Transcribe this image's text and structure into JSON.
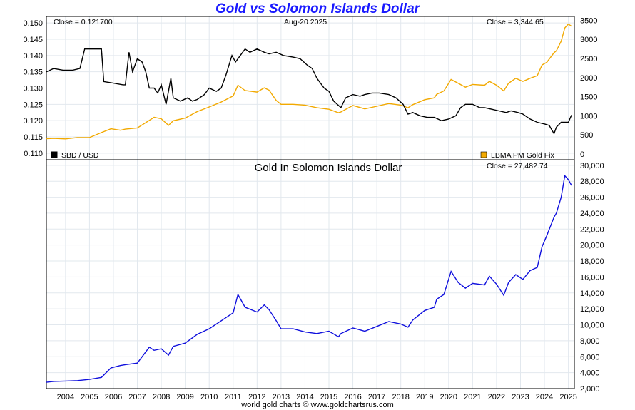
{
  "page": {
    "title": "Gold vs Solomon Islands Dollar",
    "footer": "world gold charts © www.goldchartsrus.com"
  },
  "colors": {
    "sbd_line": "#000000",
    "gold_line": "#f2a900",
    "gold_sbd_line": "#1010dd",
    "grid": "#e2e8ee",
    "title": "#1a1aff"
  },
  "chart_data": [
    {
      "type": "line",
      "close_left": "Close = 0.121700",
      "date_label": "Aug-20  2025",
      "close_right": "Close = 3,344.65",
      "x_tick_labels": [
        "2004",
        "2005",
        "2006",
        "2007",
        "2008",
        "2009",
        "2010",
        "2011",
        "2012",
        "2013",
        "2014",
        "2015",
        "2016",
        "2017",
        "2018",
        "2019",
        "2020",
        "2021",
        "2022",
        "2023",
        "2024",
        "2025"
      ],
      "y_left_ticks": [
        "0.110",
        "0.115",
        "0.120",
        "0.125",
        "0.130",
        "0.135",
        "0.140",
        "0.145",
        "0.150"
      ],
      "y_left_lim": [
        0.108,
        0.152
      ],
      "y_right_ticks": [
        "0",
        "500",
        "1000",
        "1500",
        "2000",
        "2500",
        "3000",
        "3500"
      ],
      "y_right_lim": [
        -150,
        3600
      ],
      "legend_placement": "bottom",
      "series": [
        {
          "name": "SBD / USD",
          "axis": "left",
          "x": [
            2003.7,
            2004.0,
            2004.4,
            2004.8,
            2005.1,
            2005.15,
            2005.3,
            2005.6,
            2006.0,
            2006.1,
            2006.5,
            2006.9,
            2007.0,
            2007.15,
            2007.3,
            2007.5,
            2007.7,
            2007.85,
            2008.0,
            2008.2,
            2008.35,
            2008.5,
            2008.7,
            2008.9,
            2009.0,
            2009.3,
            2009.6,
            2009.8,
            2010.0,
            2010.3,
            2010.5,
            2010.8,
            2011.0,
            2011.2,
            2011.45,
            2011.6,
            2011.8,
            2012.0,
            2012.2,
            2012.5,
            2012.8,
            2013.0,
            2013.3,
            2013.6,
            2014.0,
            2014.3,
            2014.6,
            2014.8,
            2015.0,
            2015.3,
            2015.5,
            2015.7,
            2016.0,
            2016.2,
            2016.5,
            2016.8,
            2017.0,
            2017.3,
            2017.6,
            2018.0,
            2018.3,
            2018.6,
            2018.8,
            2019.0,
            2019.3,
            2019.6,
            2019.9,
            2020.2,
            2020.5,
            2020.8,
            2021.0,
            2021.2,
            2021.5,
            2021.8,
            2022.0,
            2022.3,
            2022.6,
            2022.9,
            2023.1,
            2023.4,
            2023.6,
            2023.9,
            2024.2,
            2024.5,
            2024.7,
            2024.9,
            2025.0,
            2025.2,
            2025.35,
            2025.5,
            2025.63
          ],
          "values": [
            0.135,
            0.136,
            0.1355,
            0.1355,
            0.136,
            0.1375,
            0.142,
            0.142,
            0.142,
            0.132,
            0.1315,
            0.131,
            0.131,
            0.141,
            0.135,
            0.139,
            0.138,
            0.135,
            0.13,
            0.13,
            0.1285,
            0.131,
            0.125,
            0.133,
            0.127,
            0.126,
            0.127,
            0.126,
            0.1265,
            0.128,
            0.13,
            0.129,
            0.13,
            0.134,
            0.14,
            0.138,
            0.14,
            0.142,
            0.141,
            0.142,
            0.141,
            0.1405,
            0.141,
            0.14,
            0.1395,
            0.139,
            0.137,
            0.136,
            0.133,
            0.13,
            0.129,
            0.126,
            0.124,
            0.127,
            0.128,
            0.1275,
            0.128,
            0.1285,
            0.1285,
            0.128,
            0.127,
            0.125,
            0.122,
            0.1225,
            0.1215,
            0.121,
            0.121,
            0.12,
            0.1205,
            0.1215,
            0.124,
            0.125,
            0.125,
            0.124,
            0.124,
            0.1235,
            0.123,
            0.1225,
            0.123,
            0.1225,
            0.122,
            0.1205,
            0.1195,
            0.119,
            0.1185,
            0.116,
            0.118,
            0.1195,
            0.1195,
            0.1195,
            0.1217
          ]
        },
        {
          "name": "LBMA PM Gold Fix",
          "axis": "right",
          "x": [
            2003.7,
            2004.0,
            2004.5,
            2005.0,
            2005.5,
            2006.0,
            2006.4,
            2006.8,
            2007.0,
            2007.5,
            2008.0,
            2008.2,
            2008.5,
            2008.8,
            2009.0,
            2009.5,
            2010.0,
            2010.5,
            2011.0,
            2011.5,
            2011.7,
            2012.0,
            2012.5,
            2012.8,
            2013.0,
            2013.3,
            2013.5,
            2014.0,
            2014.5,
            2015.0,
            2015.5,
            2015.9,
            2016.0,
            2016.5,
            2017.0,
            2017.5,
            2018.0,
            2018.5,
            2018.8,
            2019.0,
            2019.5,
            2019.9,
            2020.0,
            2020.3,
            2020.6,
            2020.9,
            2021.2,
            2021.5,
            2022.0,
            2022.2,
            2022.5,
            2022.8,
            2023.0,
            2023.3,
            2023.6,
            2023.9,
            2024.2,
            2024.4,
            2024.6,
            2024.9,
            2025.0,
            2025.2,
            2025.35,
            2025.5,
            2025.63
          ],
          "values": [
            400,
            410,
            395,
            430,
            430,
            560,
            660,
            620,
            650,
            680,
            880,
            960,
            920,
            750,
            870,
            940,
            1110,
            1230,
            1360,
            1520,
            1800,
            1660,
            1620,
            1730,
            1670,
            1400,
            1300,
            1300,
            1280,
            1210,
            1170,
            1080,
            1100,
            1270,
            1180,
            1250,
            1320,
            1280,
            1210,
            1290,
            1420,
            1470,
            1560,
            1650,
            1950,
            1850,
            1750,
            1820,
            1800,
            1900,
            1800,
            1650,
            1850,
            1980,
            1900,
            1980,
            2050,
            2330,
            2400,
            2650,
            2700,
            2950,
            3300,
            3400,
            3345
          ]
        }
      ]
    },
    {
      "type": "line",
      "title": "Gold In Solomon Islands Dollar",
      "close_label": "Close = 27,482.74",
      "x_tick_labels": [
        "2004",
        "2005",
        "2006",
        "2007",
        "2008",
        "2009",
        "2010",
        "2011",
        "2012",
        "2013",
        "2014",
        "2015",
        "2016",
        "2017",
        "2018",
        "2019",
        "2020",
        "2021",
        "2022",
        "2023",
        "2024",
        "2025"
      ],
      "y_right_ticks": [
        "2,000",
        "4,000",
        "6,000",
        "8,000",
        "10,000",
        "12,000",
        "14,000",
        "16,000",
        "18,000",
        "20,000",
        "22,000",
        "24,000",
        "26,000",
        "28,000",
        "30,000"
      ],
      "ylim": [
        2000,
        30700
      ],
      "series": [
        {
          "name": "Gold In Solomon Islands Dollar",
          "x": [
            2003.7,
            2004.0,
            2004.5,
            2005.0,
            2005.5,
            2006.0,
            2006.4,
            2006.8,
            2007.0,
            2007.5,
            2008.0,
            2008.2,
            2008.5,
            2008.8,
            2009.0,
            2009.5,
            2010.0,
            2010.5,
            2011.0,
            2011.5,
            2011.7,
            2012.0,
            2012.5,
            2012.8,
            2013.0,
            2013.3,
            2013.5,
            2014.0,
            2014.5,
            2015.0,
            2015.5,
            2015.9,
            2016.0,
            2016.5,
            2017.0,
            2017.5,
            2018.0,
            2018.5,
            2018.8,
            2019.0,
            2019.5,
            2019.9,
            2020.0,
            2020.3,
            2020.6,
            2020.9,
            2021.2,
            2021.5,
            2022.0,
            2022.2,
            2022.5,
            2022.8,
            2023.0,
            2023.3,
            2023.6,
            2023.9,
            2024.2,
            2024.4,
            2024.6,
            2024.9,
            2025.0,
            2025.2,
            2025.35,
            2025.5,
            2025.63
          ],
          "values": [
            2800,
            2900,
            2950,
            3000,
            3150,
            3400,
            4600,
            4900,
            5000,
            5200,
            7200,
            6800,
            7000,
            6200,
            7300,
            7700,
            8800,
            9500,
            10500,
            11500,
            13800,
            12200,
            11600,
            12500,
            11900,
            10500,
            9500,
            9500,
            9100,
            8900,
            9200,
            8500,
            8900,
            9600,
            9200,
            9800,
            10400,
            10100,
            9700,
            10600,
            11800,
            12200,
            13200,
            13800,
            16700,
            15300,
            14600,
            15200,
            15000,
            16100,
            15100,
            13700,
            15300,
            16300,
            15700,
            16800,
            17200,
            19800,
            21200,
            23500,
            24000,
            26000,
            28700,
            28200,
            27483
          ]
        }
      ]
    }
  ],
  "axes": {
    "x_year_start": 2003.7,
    "x_year_end": 2025.75
  }
}
